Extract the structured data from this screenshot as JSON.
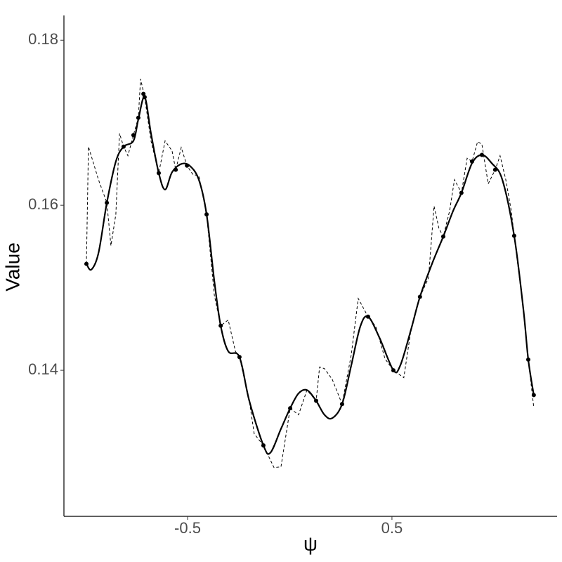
{
  "chart_data": {
    "type": "line",
    "xlabel": "ψ",
    "ylabel": "Value",
    "xlim": [
      -1.105,
      1.308
    ],
    "ylim": [
      0.1223,
      0.183
    ],
    "xticks": [
      -0.5,
      0.5
    ],
    "yticks": [
      0.14,
      0.16,
      0.18
    ],
    "grid": false,
    "series": [
      {
        "style": "points",
        "color": "#000000",
        "x": [
          -0.995,
          -0.895,
          -0.813,
          -0.765,
          -0.741,
          -0.716,
          -0.71,
          -0.641,
          -0.558,
          -0.503,
          -0.407,
          -0.338,
          -0.246,
          -0.129,
          0.002,
          0.129,
          0.256,
          0.383,
          0.507,
          0.637,
          0.751,
          0.84,
          0.892,
          0.94,
          1.005,
          1.098,
          1.167,
          1.194
        ],
        "values": [
          0.1529,
          0.1603,
          0.1671,
          0.1685,
          0.1706,
          0.1735,
          0.1731,
          0.1639,
          0.1643,
          0.1648,
          0.1589,
          0.1454,
          0.1416,
          0.1309,
          0.1354,
          0.1363,
          0.1359,
          0.1465,
          0.14,
          0.1489,
          0.1562,
          0.1615,
          0.1653,
          0.1661,
          0.1643,
          0.1563,
          0.1413,
          0.137
        ]
      },
      {
        "style": "smooth",
        "color": "#000000",
        "x": [
          -0.995,
          -0.971,
          -0.936,
          -0.895,
          -0.851,
          -0.813,
          -0.765,
          -0.741,
          -0.71,
          -0.679,
          -0.641,
          -0.61,
          -0.576,
          -0.531,
          -0.49,
          -0.445,
          -0.407,
          -0.369,
          -0.338,
          -0.301,
          -0.246,
          -0.198,
          -0.129,
          -0.095,
          -0.043,
          0.002,
          0.043,
          0.084,
          0.129,
          0.17,
          0.208,
          0.256,
          0.301,
          0.345,
          0.383,
          0.438,
          0.507,
          0.541,
          0.593,
          0.637,
          0.696,
          0.751,
          0.799,
          0.84,
          0.892,
          0.94,
          0.988,
          1.04,
          1.098,
          1.143,
          1.167,
          1.194
        ],
        "values": [
          0.1529,
          0.1522,
          0.1542,
          0.1603,
          0.1653,
          0.1671,
          0.1678,
          0.1704,
          0.1731,
          0.1687,
          0.1639,
          0.1619,
          0.164,
          0.165,
          0.1648,
          0.1631,
          0.1589,
          0.1508,
          0.1454,
          0.1423,
          0.1416,
          0.1363,
          0.1309,
          0.13,
          0.1329,
          0.1354,
          0.1372,
          0.1376,
          0.1363,
          0.1346,
          0.1342,
          0.1359,
          0.1406,
          0.1453,
          0.1465,
          0.144,
          0.14,
          0.1406,
          0.1449,
          0.1489,
          0.1529,
          0.1562,
          0.1593,
          0.1615,
          0.1651,
          0.1661,
          0.1651,
          0.1631,
          0.1563,
          0.1474,
          0.1413,
          0.137
        ]
      },
      {
        "style": "dashed",
        "color": "#000000",
        "x": [
          -0.995,
          -0.985,
          -0.936,
          -0.895,
          -0.875,
          -0.851,
          -0.833,
          -0.813,
          -0.792,
          -0.765,
          -0.741,
          -0.73,
          -0.71,
          -0.679,
          -0.641,
          -0.61,
          -0.576,
          -0.558,
          -0.531,
          -0.503,
          -0.473,
          -0.445,
          -0.407,
          -0.369,
          -0.338,
          -0.301,
          -0.266,
          -0.246,
          -0.198,
          -0.174,
          -0.129,
          -0.077,
          -0.043,
          0.002,
          0.043,
          0.084,
          0.129,
          0.146,
          0.17,
          0.208,
          0.256,
          0.301,
          0.335,
          0.383,
          0.421,
          0.466,
          0.507,
          0.558,
          0.593,
          0.637,
          0.679,
          0.706,
          0.73,
          0.751,
          0.782,
          0.806,
          0.84,
          0.868,
          0.892,
          0.919,
          0.94,
          0.971,
          1.005,
          1.029,
          1.057,
          1.084,
          1.098,
          1.143,
          1.167,
          1.194
        ],
        "values": [
          0.1529,
          0.1671,
          0.1631,
          0.1603,
          0.1551,
          0.1589,
          0.1687,
          0.1671,
          0.166,
          0.1685,
          0.1706,
          0.1753,
          0.1731,
          0.1678,
          0.1639,
          0.1678,
          0.1666,
          0.1643,
          0.167,
          0.1648,
          0.1637,
          0.1636,
          0.1589,
          0.1491,
          0.1454,
          0.1461,
          0.1423,
          0.1416,
          0.1363,
          0.1323,
          0.1309,
          0.1282,
          0.1283,
          0.1354,
          0.1346,
          0.1376,
          0.1363,
          0.1404,
          0.1402,
          0.1389,
          0.1359,
          0.1419,
          0.1487,
          0.1465,
          0.1453,
          0.1414,
          0.14,
          0.1391,
          0.1449,
          0.1489,
          0.1512,
          0.1599,
          0.1572,
          0.1562,
          0.1593,
          0.1631,
          0.1615,
          0.1657,
          0.1653,
          0.1677,
          0.1674,
          0.1626,
          0.1643,
          0.166,
          0.1631,
          0.1593,
          0.1563,
          0.1474,
          0.1413,
          0.1355
        ]
      }
    ]
  }
}
